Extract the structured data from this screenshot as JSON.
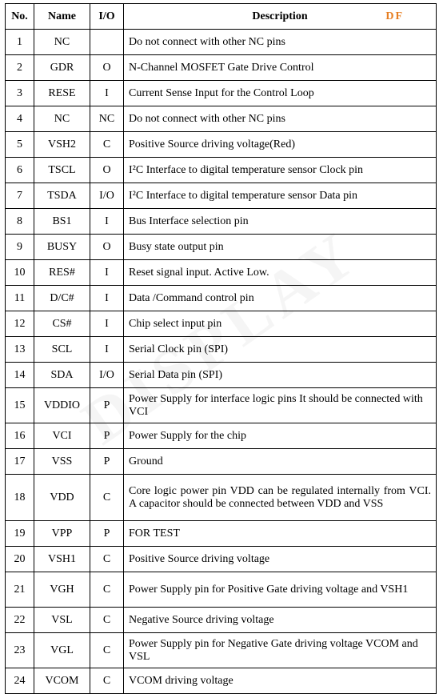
{
  "table": {
    "headers": {
      "no": "No.",
      "name": "Name",
      "io": "I/O",
      "desc": "Description"
    },
    "df": "DF",
    "rows": [
      {
        "no": "1",
        "name": "NC",
        "io": "",
        "desc": "Do not connect with other NC pins"
      },
      {
        "no": "2",
        "name": "GDR",
        "io": "O",
        "desc": "N-Channel MOSFET Gate Drive Control"
      },
      {
        "no": "3",
        "name": "RESE",
        "io": "I",
        "desc": "Current Sense Input for the Control Loop"
      },
      {
        "no": "4",
        "name": "NC",
        "io": "NC",
        "desc": "Do not connect with other NC pins"
      },
      {
        "no": "5",
        "name": "VSH2",
        "io": "C",
        "desc": "Positive Source driving voltage(Red)"
      },
      {
        "no": "6",
        "name": "TSCL",
        "io": "O",
        "desc": "I²C Interface to digital temperature sensor Clock pin"
      },
      {
        "no": "7",
        "name": "TSDA",
        "io": "I/O",
        "desc": "I²C Interface to digital temperature sensor Data pin"
      },
      {
        "no": "8",
        "name": "BS1",
        "io": "I",
        "desc": "Bus Interface selection pin"
      },
      {
        "no": "9",
        "name": "BUSY",
        "io": "O",
        "desc": "Busy state output pin"
      },
      {
        "no": "10",
        "name": "RES#",
        "io": "I",
        "desc": "Reset signal input. Active Low."
      },
      {
        "no": "11",
        "name": "D/C#",
        "io": "I",
        "desc": "Data /Command control pin"
      },
      {
        "no": "12",
        "name": "CS#",
        "io": "I",
        "desc": "Chip select input pin"
      },
      {
        "no": "13",
        "name": "SCL",
        "io": "I",
        "desc": "Serial Clock pin (SPI)"
      },
      {
        "no": "14",
        "name": "SDA",
        "io": "I/O",
        "desc": "Serial Data pin (SPI)"
      },
      {
        "no": "15",
        "name": "VDDIO",
        "io": "P",
        "desc": "Power Supply for interface logic pins It should be connected with VCI",
        "tall": true
      },
      {
        "no": "16",
        "name": "VCI",
        "io": "P",
        "desc": "Power Supply for the chip"
      },
      {
        "no": "17",
        "name": "VSS",
        "io": "P",
        "desc": "Ground"
      },
      {
        "no": "18",
        "name": "VDD",
        "io": "C",
        "desc": "Core logic power pin VDD can be regulated internally from VCI. A capacitor should be connected between VDD and VSS",
        "xtall": true,
        "justify": true
      },
      {
        "no": "19",
        "name": "VPP",
        "io": "P",
        "desc": "FOR TEST"
      },
      {
        "no": "20",
        "name": "VSH1",
        "io": "C",
        "desc": "Positive Source driving voltage"
      },
      {
        "no": "21",
        "name": "VGH",
        "io": "C",
        "desc": "Power Supply pin for Positive Gate driving voltage and VSH1",
        "tall": true
      },
      {
        "no": "22",
        "name": "VSL",
        "io": "C",
        "desc": "Negative Source driving voltage"
      },
      {
        "no": "23",
        "name": "VGL",
        "io": "C",
        "desc": "Power Supply pin for Negative Gate driving voltage VCOM and VSL",
        "tall": true
      },
      {
        "no": "24",
        "name": "VCOM",
        "io": "C",
        "desc": "VCOM driving voltage"
      }
    ]
  },
  "watermark": "DISPLAY"
}
